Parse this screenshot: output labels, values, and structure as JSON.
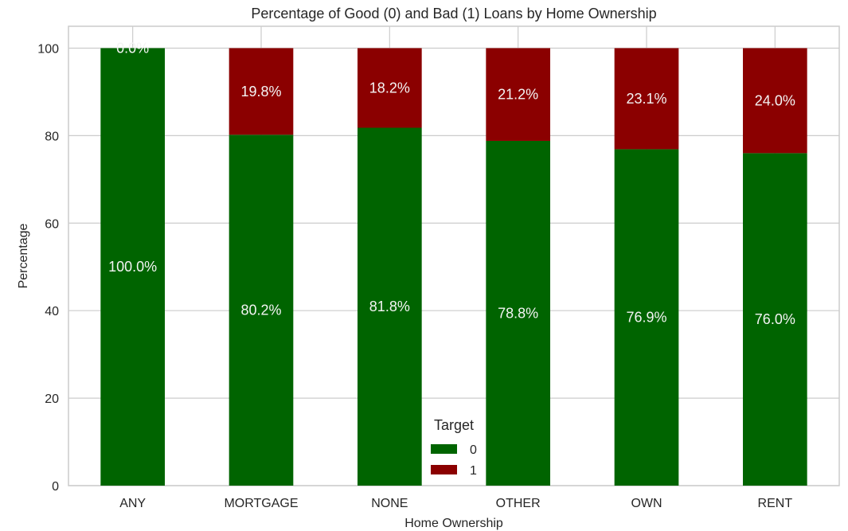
{
  "chart_data": {
    "type": "bar",
    "stacked": true,
    "title": "Percentage of Good (0) and Bad (1) Loans by Home Ownership",
    "xlabel": "Home Ownership",
    "ylabel": "Percentage",
    "ylim": [
      0,
      105
    ],
    "yticks": [
      "0",
      "20",
      "40",
      "60",
      "80",
      "100"
    ],
    "grid": true,
    "legend": {
      "title": "Target",
      "placement": "bottom-center"
    },
    "categories": [
      "ANY",
      "MORTGAGE",
      "NONE",
      "OTHER",
      "OWN",
      "RENT"
    ],
    "series": [
      {
        "name": "0",
        "color": "#006400",
        "values": [
          100.0,
          80.2,
          81.8,
          78.8,
          76.9,
          76.0
        ],
        "labels": [
          "100.0%",
          "80.2%",
          "81.8%",
          "78.8%",
          "76.9%",
          "76.0%"
        ]
      },
      {
        "name": "1",
        "color": "#8b0000",
        "values": [
          0.0,
          19.8,
          18.2,
          21.2,
          23.1,
          24.0
        ],
        "labels": [
          "0.0%",
          "19.8%",
          "18.2%",
          "21.2%",
          "23.1%",
          "24.0%"
        ]
      }
    ]
  }
}
